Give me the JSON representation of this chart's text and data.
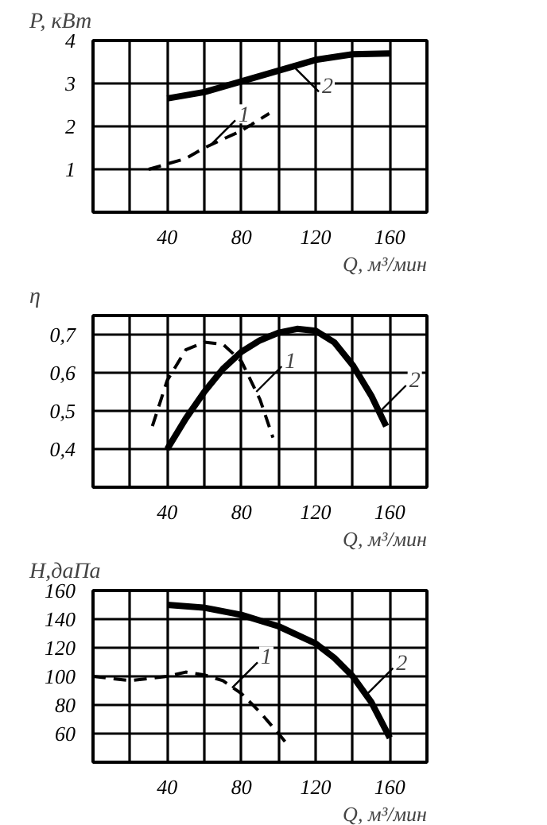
{
  "chart_data": [
    {
      "type": "line",
      "ylabel": "P, кВт",
      "xlabel": "Q, м³/мин",
      "xlim": [
        0,
        180
      ],
      "ylim": [
        0,
        4
      ],
      "xticks": [
        {
          "value": 20,
          "label": null
        },
        40,
        {
          "value": 60,
          "label": null
        },
        80,
        {
          "value": 100,
          "label": null
        },
        120,
        {
          "value": 140,
          "label": null
        },
        160
      ],
      "yticks": [
        1,
        2,
        3,
        4
      ],
      "grid": true,
      "marker": "none",
      "series": [
        {
          "color": "#000000",
          "line_style": "dashed",
          "x": [
            30,
            50,
            60,
            70,
            80,
            95
          ],
          "values": [
            1.0,
            1.25,
            1.5,
            1.7,
            1.9,
            2.3
          ]
        },
        {
          "color": "#000000",
          "line_style": "solid",
          "x": [
            40,
            60,
            80,
            100,
            120,
            140,
            160
          ],
          "values": [
            2.65,
            2.8,
            3.05,
            3.3,
            3.55,
            3.68,
            3.7
          ]
        }
      ],
      "annotations": [
        {
          "text": "1",
          "x": 63,
          "y": 1.55
        },
        {
          "text": "2",
          "x": 108,
          "y": 3.4
        }
      ]
    },
    {
      "type": "line",
      "ylabel": "η",
      "xlabel": "Q, м³/мин",
      "xlim": [
        0,
        180
      ],
      "ylim": [
        0.3,
        0.75
      ],
      "xticks": [
        {
          "value": 20,
          "label": null
        },
        40,
        {
          "value": 60,
          "label": null
        },
        80,
        {
          "value": 100,
          "label": null
        },
        120,
        {
          "value": 140,
          "label": null
        },
        160
      ],
      "yticks": [
        {
          "value": 0.4,
          "label": "0,4"
        },
        {
          "value": 0.5,
          "label": "0,5"
        },
        {
          "value": 0.6,
          "label": "0,6"
        },
        {
          "value": 0.7,
          "label": "0,7"
        }
      ],
      "grid": true,
      "marker": "none",
      "series": [
        {
          "color": "#000000",
          "line_style": "dashed",
          "x": [
            32,
            40,
            50,
            60,
            70,
            80,
            90,
            97
          ],
          "values": [
            0.46,
            0.58,
            0.66,
            0.68,
            0.675,
            0.63,
            0.53,
            0.43
          ]
        },
        {
          "color": "#000000",
          "line_style": "solid",
          "x": [
            40,
            50,
            60,
            70,
            80,
            90,
            100,
            110,
            120,
            130,
            140,
            150,
            158
          ],
          "values": [
            0.4,
            0.48,
            0.55,
            0.61,
            0.655,
            0.685,
            0.705,
            0.715,
            0.71,
            0.68,
            0.62,
            0.54,
            0.46
          ]
        }
      ],
      "annotations": [
        {
          "text": "1",
          "x": 88,
          "y": 0.55
        },
        {
          "text": "2",
          "x": 155,
          "y": 0.5
        }
      ]
    },
    {
      "type": "line",
      "ylabel": "H,даПа",
      "xlabel": "Q, м³/мин",
      "xlim": [
        0,
        180
      ],
      "ylim": [
        40,
        160
      ],
      "xticks": [
        {
          "value": 20,
          "label": null
        },
        40,
        {
          "value": 60,
          "label": null
        },
        80,
        {
          "value": 100,
          "label": null
        },
        120,
        {
          "value": 140,
          "label": null
        },
        160
      ],
      "yticks": [
        60,
        80,
        100,
        120,
        140,
        160
      ],
      "grid": true,
      "marker": "none",
      "series": [
        {
          "color": "#000000",
          "line_style": "dashed",
          "x": [
            0,
            20,
            40,
            50,
            60,
            70,
            80,
            90,
            100,
            105
          ],
          "values": [
            100,
            97,
            100,
            103,
            101,
            97,
            88,
            75,
            60,
            52
          ]
        },
        {
          "color": "#000000",
          "line_style": "solid",
          "x": [
            40,
            60,
            80,
            100,
            120,
            130,
            140,
            150,
            160
          ],
          "values": [
            150,
            148,
            143,
            135,
            123,
            113,
            100,
            82,
            57
          ]
        }
      ],
      "annotations": [
        {
          "text": "1",
          "x": 75,
          "y": 92
        },
        {
          "text": "2",
          "x": 148,
          "y": 88
        }
      ]
    }
  ]
}
